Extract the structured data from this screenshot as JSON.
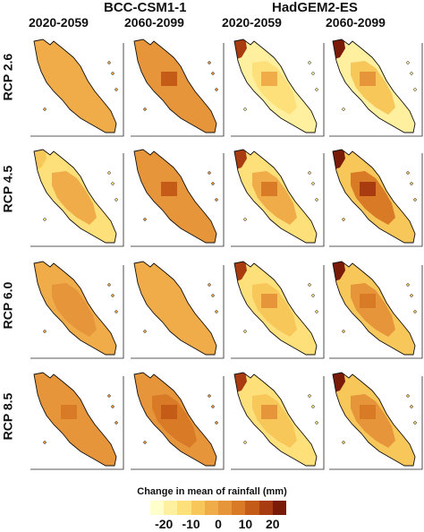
{
  "models": [
    "BCC-CSM1-1",
    "HadGEM2-ES"
  ],
  "periods": [
    "2020-2059",
    "2060-2099",
    "2020-2059",
    "2060-2099"
  ],
  "scenarios": [
    "RCP 2.6",
    "RCP 4.5",
    "RCP 6.0",
    "RCP 8.5"
  ],
  "legend": {
    "title": "Change in mean of rainfall (mm)",
    "colors": [
      "#ffffcc",
      "#fff0a0",
      "#fde07a",
      "#f8c75a",
      "#f0ac48",
      "#e6953a",
      "#d87a26",
      "#c45c18",
      "#a83c10",
      "#7a1a08"
    ],
    "ticks": [
      "-20",
      "-10",
      "0",
      "10",
      "20"
    ]
  },
  "maps": [
    {
      "base": "#f0ac48",
      "inner": "#f0ac48",
      "core": "#f0ac48",
      "north": "#f0ac48"
    },
    {
      "base": "#e6953a",
      "inner": "#e6953a",
      "core": "#c45c18",
      "north": "#e6953a"
    },
    {
      "base": "#fff0a0",
      "inner": "#fde07a",
      "core": "#f0ac48",
      "north": "#a83c10"
    },
    {
      "base": "#fff0a0",
      "inner": "#f8c75a",
      "core": "#e6953a",
      "north": "#7a1a08"
    },
    {
      "base": "#fde07a",
      "inner": "#f0ac48",
      "core": "#f0ac48",
      "north": "#f8c75a"
    },
    {
      "base": "#e6953a",
      "inner": "#e6953a",
      "core": "#c45c18",
      "north": "#e6953a"
    },
    {
      "base": "#fde07a",
      "inner": "#f0ac48",
      "core": "#d87a26",
      "north": "#a83c10"
    },
    {
      "base": "#f8c75a",
      "inner": "#d87a26",
      "core": "#a83c10",
      "north": "#7a1a08"
    },
    {
      "base": "#f0ac48",
      "inner": "#e6953a",
      "core": "#e6953a",
      "north": "#f0ac48"
    },
    {
      "base": "#f0ac48",
      "inner": "#f0ac48",
      "core": "#f0ac48",
      "north": "#f0ac48"
    },
    {
      "base": "#fde07a",
      "inner": "#f8c75a",
      "core": "#e6953a",
      "north": "#a83c10"
    },
    {
      "base": "#f8c75a",
      "inner": "#e6953a",
      "core": "#d87a26",
      "north": "#7a1a08"
    },
    {
      "base": "#e6953a",
      "inner": "#e6953a",
      "core": "#d87a26",
      "north": "#e6953a"
    },
    {
      "base": "#e6953a",
      "inner": "#d87a26",
      "core": "#c45c18",
      "north": "#e6953a"
    },
    {
      "base": "#fde07a",
      "inner": "#f8c75a",
      "core": "#e6953a",
      "north": "#a83c10"
    },
    {
      "base": "#f8c75a",
      "inner": "#e6953a",
      "core": "#d87a26",
      "north": "#7a1a08"
    }
  ]
}
